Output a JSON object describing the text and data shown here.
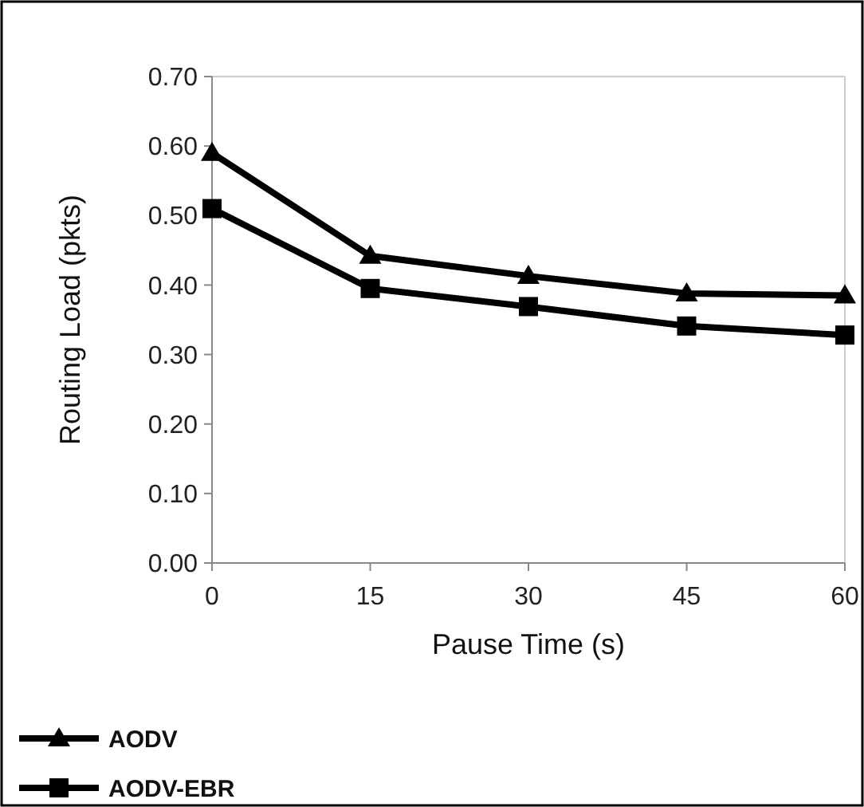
{
  "chart_data": {
    "type": "line",
    "xlabel": "Pause Time (s)",
    "ylabel": "Routing Load (pkts)",
    "x": [
      0,
      15,
      30,
      45,
      60
    ],
    "series": [
      {
        "name": "AODV",
        "color": "#000000",
        "marker": "triangle",
        "values": [
          0.59,
          0.442,
          0.413,
          0.388,
          0.385
        ]
      },
      {
        "name": "AODV-EBR",
        "color": "#000000",
        "marker": "square",
        "values": [
          0.51,
          0.395,
          0.369,
          0.341,
          0.328
        ]
      }
    ],
    "xlim": [
      0,
      60
    ],
    "xticks": [
      0,
      15,
      30,
      45,
      60
    ],
    "ylim": [
      0,
      0.7
    ],
    "yticks": [
      {
        "value": 0,
        "label": "0.00"
      },
      {
        "value": 0.1,
        "label": "0.10"
      },
      {
        "value": 0.2,
        "label": "0.20"
      },
      {
        "value": 0.3,
        "label": "0.30"
      },
      {
        "value": 0.4,
        "label": "0.40"
      },
      {
        "value": 0.5,
        "label": "0.50"
      },
      {
        "value": 0.6,
        "label": "0.60"
      },
      {
        "value": 0.7,
        "label": "0.70"
      }
    ],
    "grid": false,
    "legend": "bottom left",
    "line_style": "solid"
  }
}
